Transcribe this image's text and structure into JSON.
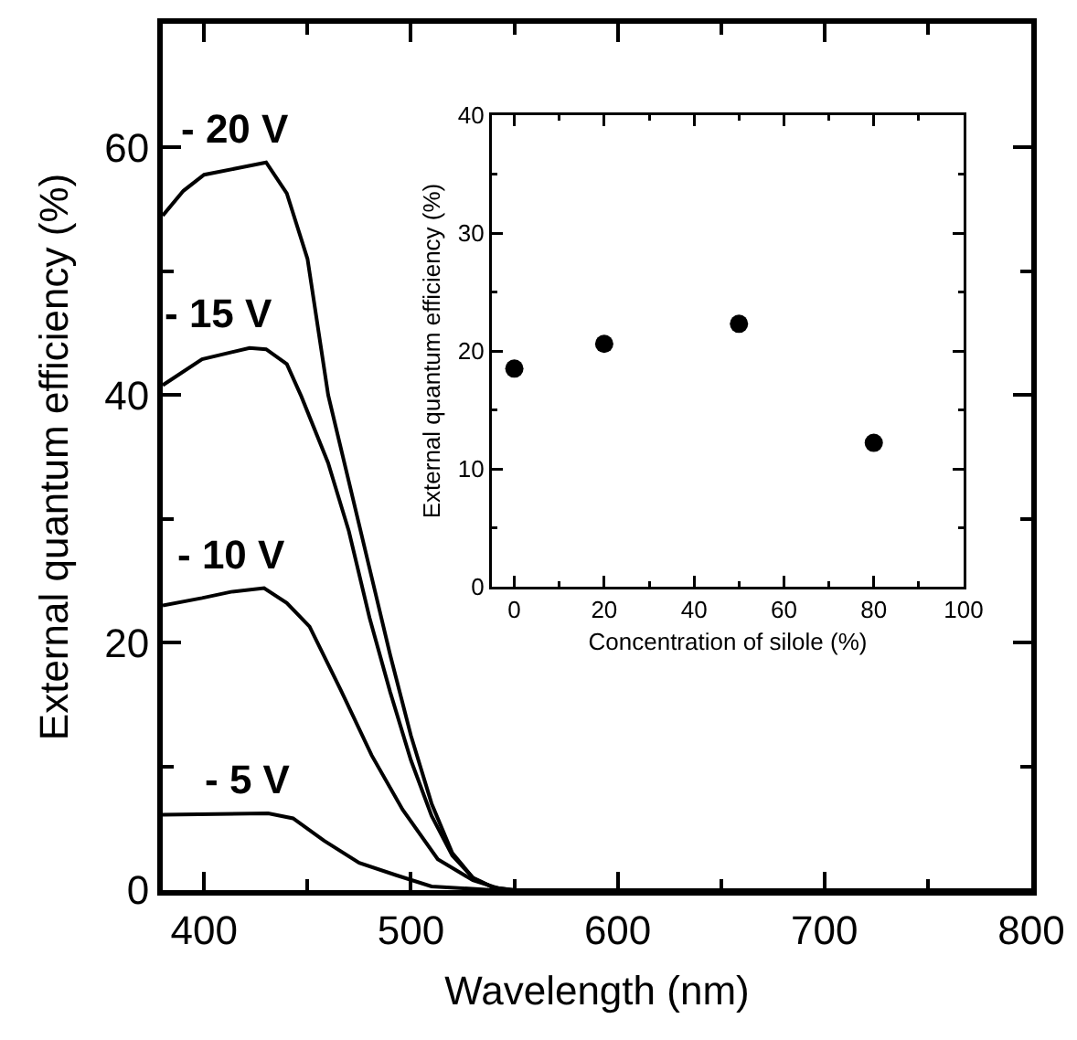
{
  "chart_data": [
    {
      "type": "line",
      "xlabel": "Wavelength (nm)",
      "ylabel": "External quantum efficiency (%)",
      "xlim": [
        380,
        800
      ],
      "ylim": [
        0,
        70
      ],
      "xticks": [
        400,
        500,
        600,
        700,
        800
      ],
      "yticks": [
        0,
        20,
        40,
        60
      ],
      "line_style": "solid",
      "series": [
        {
          "name": "- 20 V",
          "color": "#000000",
          "x": [
            380,
            390,
            400,
            415,
            430,
            440,
            450,
            460,
            470,
            480,
            490,
            500,
            510,
            520,
            530,
            540,
            550,
            600,
            700,
            800
          ],
          "values": [
            54.5,
            56.5,
            57.8,
            58.3,
            58.8,
            56.3,
            51,
            40,
            33,
            26,
            19,
            12.5,
            7,
            3,
            1,
            0.2,
            0,
            0,
            0,
            0
          ]
        },
        {
          "name": "- 15 V",
          "color": "#000000",
          "x": [
            380,
            399,
            422,
            430,
            440,
            447,
            460,
            470,
            480,
            490,
            500,
            510,
            520,
            530,
            540,
            550,
            600,
            700,
            800
          ],
          "values": [
            40.8,
            42.9,
            43.8,
            43.7,
            42.5,
            39.9,
            34.5,
            29,
            22,
            16,
            10.5,
            6,
            2.8,
            1,
            0.2,
            0,
            0,
            0,
            0
          ]
        },
        {
          "name": "- 10 V",
          "color": "#000000",
          "x": [
            380,
            399,
            413,
            429,
            440,
            451,
            466,
            481,
            496,
            513,
            530,
            545,
            600,
            700,
            800
          ],
          "values": [
            23,
            23.6,
            24.1,
            24.4,
            23.2,
            21.3,
            16.2,
            10.9,
            6.5,
            2.5,
            0.8,
            0,
            0,
            0,
            0
          ]
        },
        {
          "name": "- 5 V",
          "color": "#000000",
          "x": [
            380,
            431,
            443,
            458,
            475,
            493,
            510,
            540,
            600,
            700,
            800
          ],
          "values": [
            6.1,
            6.2,
            5.8,
            4,
            2.2,
            1.2,
            0.3,
            0,
            0,
            0,
            0
          ]
        }
      ]
    },
    {
      "type": "scatter",
      "xlabel": "Concentration of silole (%)",
      "ylabel": "External quantum efficiency (%)",
      "xlim": [
        -5,
        100
      ],
      "ylim": [
        0,
        40
      ],
      "xticks": [
        0,
        20,
        40,
        60,
        80,
        100
      ],
      "yticks": [
        0,
        10,
        20,
        30,
        40
      ],
      "marker": "circle",
      "series": [
        {
          "color": "#000000",
          "x": [
            0,
            20,
            50,
            80
          ],
          "values": [
            18.5,
            20.6,
            22.3,
            12.2
          ]
        }
      ]
    }
  ]
}
